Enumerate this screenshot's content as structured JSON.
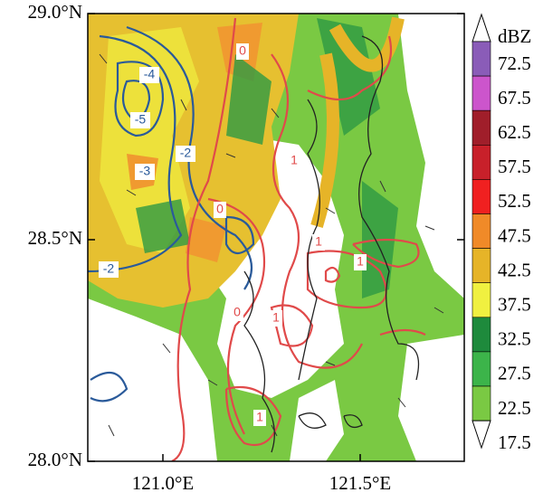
{
  "map": {
    "lat_labels": [
      "29.0°N",
      "28.5°N",
      "28.0°N"
    ],
    "lon_labels": [
      "121.0°E",
      "121.5°E"
    ],
    "colorbar": {
      "unit": "dBZ",
      "ticks": [
        72.5,
        67.5,
        62.5,
        57.5,
        52.5,
        47.5,
        42.5,
        37.5,
        32.5,
        27.5,
        22.5,
        17.5
      ],
      "colors": [
        "#8a5cb8",
        "#cc55cc",
        "#a01e2a",
        "#c8202a",
        "#f02020",
        "#f08a28",
        "#e6b428",
        "#f0f040",
        "#1e8a3c",
        "#3cb44a",
        "#7ac943"
      ]
    },
    "contour_labels": [
      {
        "text": "-4",
        "color": "#2a5a9a"
      },
      {
        "text": "-5",
        "color": "#2a5a9a"
      },
      {
        "text": "-3",
        "color": "#2a5a9a"
      },
      {
        "text": "-2",
        "color": "#2a5a9a"
      },
      {
        "text": "-2",
        "color": "#2a5a9a"
      },
      {
        "text": "0",
        "color": "#e04a4a"
      },
      {
        "text": "0",
        "color": "#e04a4a"
      },
      {
        "text": "0",
        "color": "#e04a4a"
      },
      {
        "text": "1",
        "color": "#e04a4a"
      },
      {
        "text": "1",
        "color": "#e04a4a"
      },
      {
        "text": "1",
        "color": "#e04a4a"
      },
      {
        "text": "1",
        "color": "#e04a4a"
      },
      {
        "text": "1",
        "color": "#e04a4a"
      }
    ]
  }
}
